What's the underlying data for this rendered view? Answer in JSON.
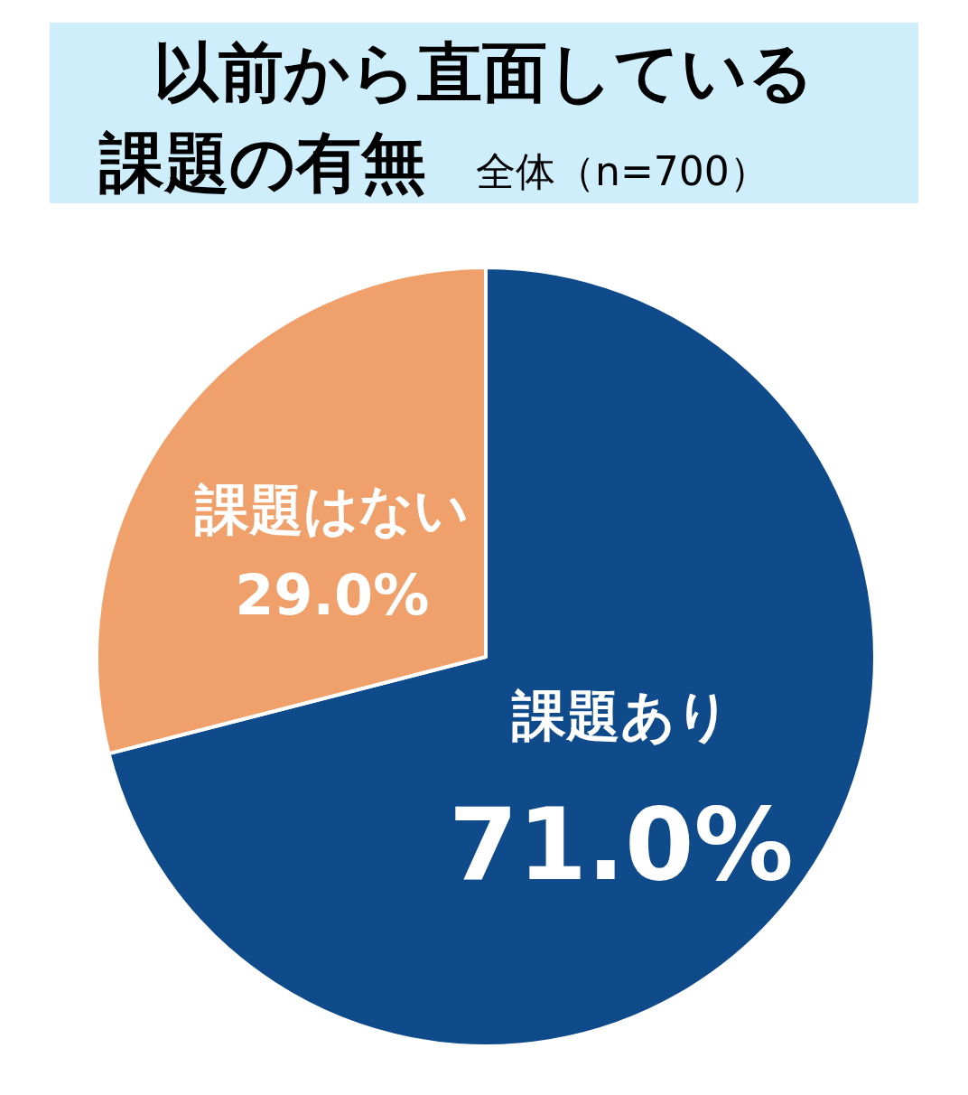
{
  "chart_data": {
    "type": "pie",
    "title": "以前から直面している課題の有無",
    "subtitle": "全体（n=700）",
    "categories": [
      "課題あり",
      "課題はない"
    ],
    "values": [
      71.0,
      29.0
    ],
    "value_labels": [
      "71.0%",
      "29.0%"
    ],
    "colors": [
      "#0f4a8a",
      "#f0a06a"
    ]
  }
}
